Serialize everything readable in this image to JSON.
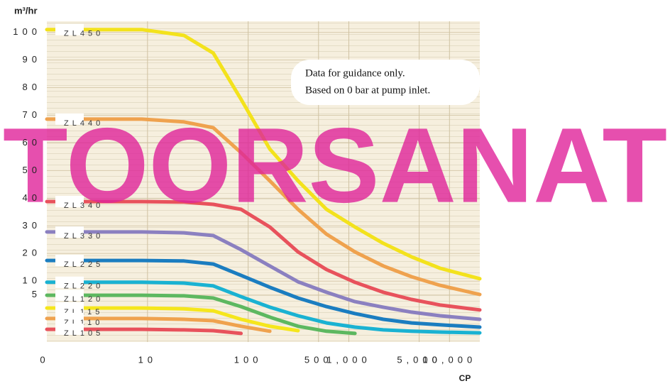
{
  "chart_data": {
    "type": "line",
    "y_label": "m³/hr",
    "x_label": "CP",
    "x_origin_label": "0",
    "note": [
      "Data for guidance only.",
      "Based on 0 bar at pump inlet."
    ],
    "watermark": "TOORSANAT",
    "x_scale": "log",
    "x": [
      1,
      2.4,
      8.8,
      23,
      45,
      85,
      164,
      313,
      600,
      1150,
      2200,
      4200,
      8050,
      20000
    ],
    "xlim": [
      1,
      20000
    ],
    "xticks": [
      10,
      100,
      500,
      {
        "value": 1000,
        "label": "1,000"
      },
      {
        "value": 5000,
        "label": "5,000"
      },
      {
        "value": 10000,
        "label": "10,000"
      }
    ],
    "ylim": [
      -12,
      104
    ],
    "yticks": [
      5,
      10,
      20,
      30,
      40,
      50,
      60,
      70,
      80,
      90,
      100
    ],
    "grid": true,
    "series": [
      {
        "name": "ZL450",
        "color": "#f3e21c",
        "values": [
          101,
          101,
          101,
          98.9,
          92.5,
          75.8,
          57.8,
          46.3,
          36,
          29.6,
          23.7,
          18.8,
          14.7,
          10.9
        ]
      },
      {
        "name": "ZL440",
        "color": "#efa24e",
        "values": [
          68.6,
          68.6,
          68.6,
          67.6,
          65.5,
          56.5,
          46.3,
          36,
          27,
          20.6,
          15.5,
          11.6,
          8.5,
          5.2
        ]
      },
      {
        "name": "ZL340",
        "color": "#e8525c",
        "values": [
          38.8,
          38.8,
          38.8,
          38.6,
          37.8,
          36,
          29.6,
          20.6,
          14.2,
          9.6,
          6,
          3.4,
          1.4,
          -0.4
        ]
      },
      {
        "name": "ZL330",
        "color": "#8b80c0",
        "values": [
          27.8,
          27.8,
          27.8,
          27.5,
          26.5,
          21.4,
          15.5,
          9.8,
          6,
          2.6,
          0.6,
          -1.2,
          -2.5,
          -3.8
        ]
      },
      {
        "name": "ZL225",
        "color": "#1b7dc0",
        "values": [
          17.5,
          17.5,
          17.5,
          17.3,
          16.2,
          12.1,
          7.8,
          3.9,
          0.8,
          -1.7,
          -3.8,
          -5.1,
          -5.8,
          -6.6
        ]
      },
      {
        "name": "ZL220",
        "color": "#1ab2d2",
        "values": [
          9.6,
          9.6,
          9.6,
          9.3,
          8.3,
          4.4,
          0.6,
          -2.5,
          -5.1,
          -6.6,
          -7.6,
          -8.1,
          -8.4,
          -8.7
        ]
      },
      {
        "name": "ZL120",
        "color": "#5db860",
        "values": [
          4.9,
          4.9,
          4.9,
          4.7,
          3.9,
          0.8,
          -3,
          -6.3,
          -8.1,
          -8.9,
          null,
          null,
          null,
          null
        ]
      },
      {
        "name": "ZL115",
        "color": "#f5e61c",
        "values": [
          0.3,
          0.3,
          0.3,
          0,
          -0.7,
          -3.8,
          -6.3,
          -7.9,
          null,
          null,
          null,
          null,
          null,
          null
        ]
      },
      {
        "name": "ZL110",
        "color": "#efa24e",
        "values": [
          -3.5,
          -3.5,
          -3.5,
          -3.8,
          -4.3,
          -6.3,
          -8.1,
          null,
          null,
          null,
          null,
          null,
          null,
          null
        ]
      },
      {
        "name": "ZL105",
        "color": "#e8525c",
        "values": [
          -7.4,
          -7.4,
          -7.4,
          -7.6,
          -7.9,
          -8.9,
          null,
          null,
          null,
          null,
          null,
          null,
          null,
          null
        ]
      }
    ]
  }
}
